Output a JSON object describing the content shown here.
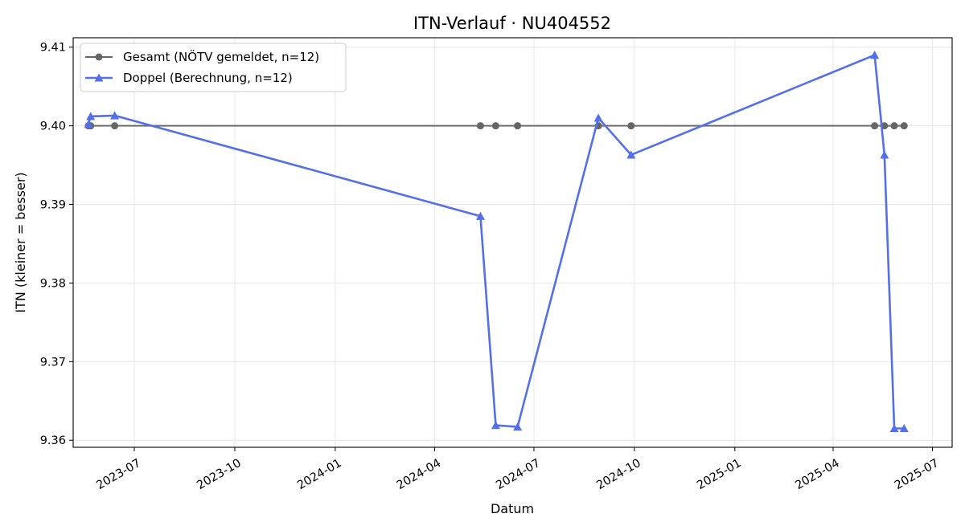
{
  "chart_data": {
    "type": "line",
    "title": "ITN-Verlauf · NU404552",
    "xlabel": "Datum",
    "ylabel": "ITN  (kleiner = besser)",
    "xlim": [
      "2023-05-06",
      "2025-07-19"
    ],
    "ylim": [
      9.3591,
      9.4112
    ],
    "grid": true,
    "legend_position": "top-left",
    "x_ticks": [
      "2023-07",
      "2023-10",
      "2024-01",
      "2024-04",
      "2024-07",
      "2024-10",
      "2025-01",
      "2025-04",
      "2025-07"
    ],
    "y_ticks": [
      9.36,
      9.37,
      9.38,
      9.39,
      9.4,
      9.41
    ],
    "y_tick_labels": [
      "9.36",
      "9.37",
      "9.38",
      "9.39",
      "9.40",
      "9.41"
    ],
    "series": [
      {
        "name": "Gesamt (NÖTV gemeldet, n=12)",
        "color": "#666666",
        "marker": "circle",
        "x": [
          "2023-05-20",
          "2023-05-22",
          "2023-06-13",
          "2024-05-13",
          "2024-05-27",
          "2024-06-16",
          "2024-08-29",
          "2024-09-28",
          "2025-05-09",
          "2025-05-18",
          "2025-05-27",
          "2025-06-05"
        ],
        "y": [
          9.4,
          9.4,
          9.4,
          9.4,
          9.4,
          9.4,
          9.4,
          9.4,
          9.4,
          9.4,
          9.4,
          9.4
        ]
      },
      {
        "name": "Doppel (Berechnung, n=12)",
        "color": "#5470e8",
        "marker": "triangle",
        "x": [
          "2023-05-20",
          "2023-05-22",
          "2023-06-13",
          "2024-05-13",
          "2024-05-27",
          "2024-06-16",
          "2024-08-29",
          "2024-09-28",
          "2025-05-09",
          "2025-05-18",
          "2025-05-27",
          "2025-06-05"
        ],
        "y": [
          9.4002,
          9.4012,
          9.4013,
          9.3885,
          9.3619,
          9.3617,
          9.401,
          9.3963,
          9.409,
          9.3963,
          9.3615,
          9.3615
        ]
      }
    ]
  }
}
